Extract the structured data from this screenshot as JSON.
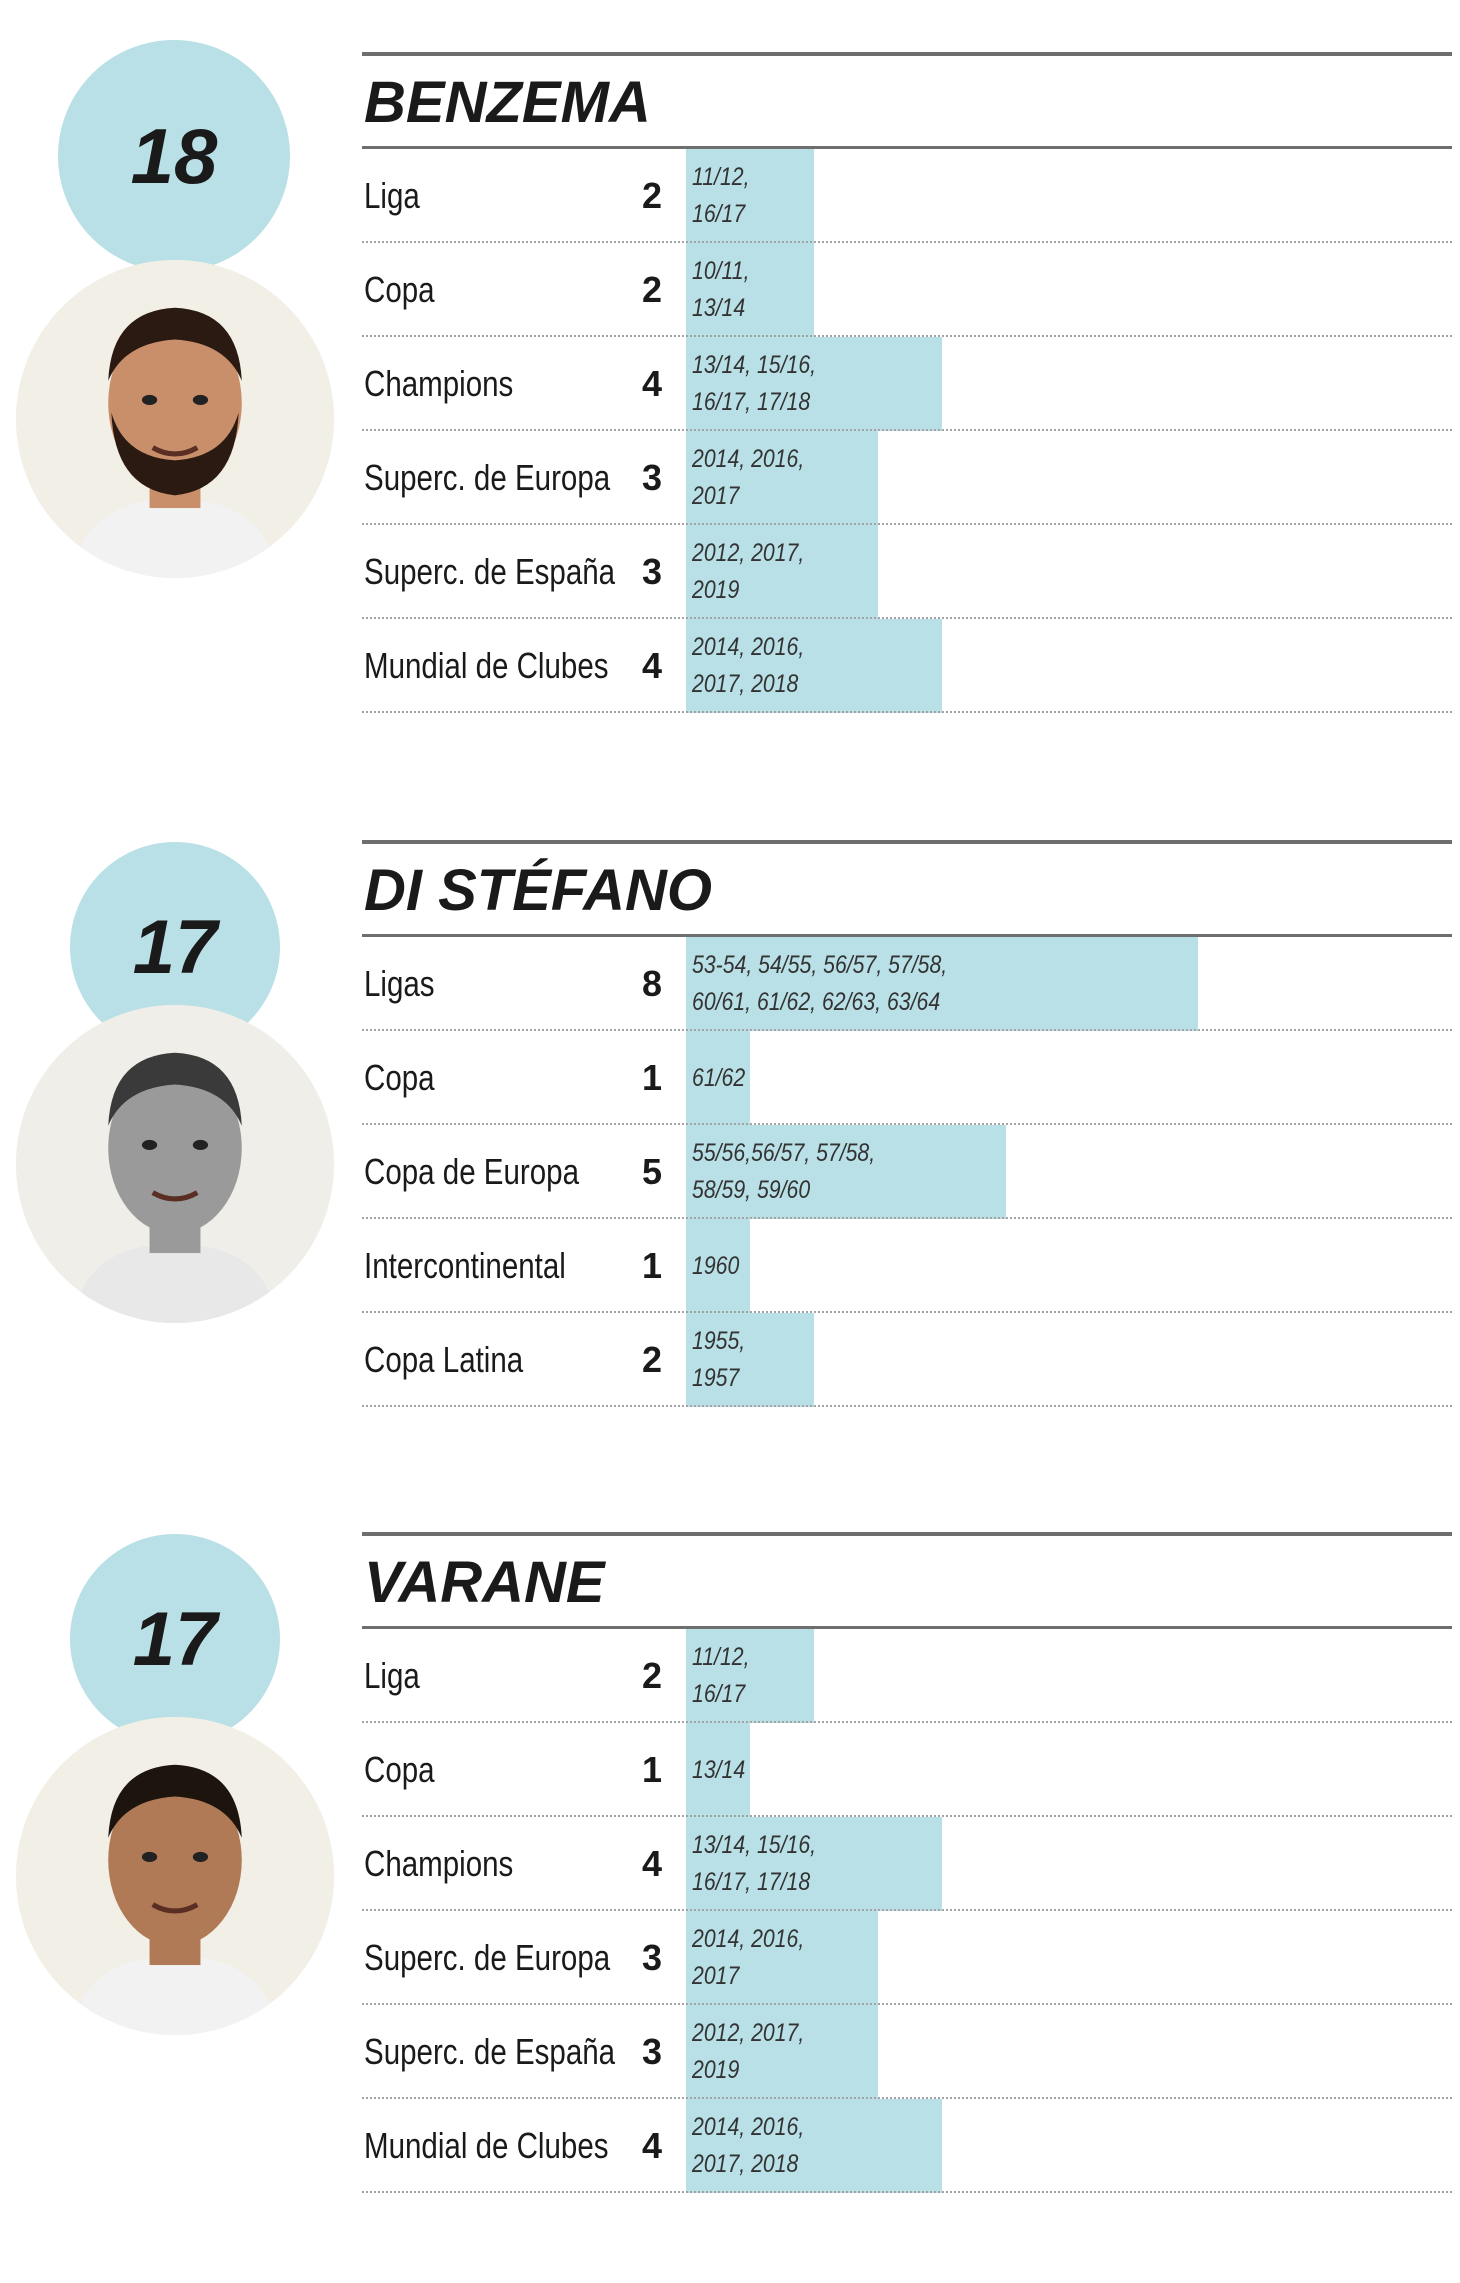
{
  "chart_data": {
    "type": "bar",
    "players": [
      {
        "rank": "18",
        "name": "BENZEMA",
        "photo_icon": "benzema-portrait-icon",
        "titles": [
          {
            "competition": "Liga",
            "count": 2,
            "years": "11/12,\n16/17"
          },
          {
            "competition": "Copa",
            "count": 2,
            "years": "10/11,\n13/14"
          },
          {
            "competition": "Champions",
            "count": 4,
            "years": "13/14, 15/16,\n16/17, 17/18"
          },
          {
            "competition": "Superc. de Europa",
            "count": 3,
            "years": "2014, 2016,\n2017"
          },
          {
            "competition": "Superc. de España",
            "count": 3,
            "years": "2012, 2017,\n2019"
          },
          {
            "competition": "Mundial de Clubes",
            "count": 4,
            "years": "2014, 2016,\n2017, 2018"
          }
        ]
      },
      {
        "rank": "17",
        "name": "DI STÉFANO",
        "photo_icon": "di-stefano-portrait-icon",
        "titles": [
          {
            "competition": "Ligas",
            "count": 8,
            "years": "53-54, 54/55, 56/57, 57/58,\n60/61, 61/62, 62/63, 63/64"
          },
          {
            "competition": "Copa",
            "count": 1,
            "years": "61/62"
          },
          {
            "competition": "Copa de Europa",
            "count": 5,
            "years": "55/56,56/57, 57/58,\n58/59, 59/60"
          },
          {
            "competition": "Intercontinental",
            "count": 1,
            "years": "1960"
          },
          {
            "competition": "Copa Latina",
            "count": 2,
            "years": "1955,\n1957"
          }
        ]
      },
      {
        "rank": "17",
        "name": "VARANE",
        "photo_icon": "varane-portrait-icon",
        "titles": [
          {
            "competition": "Liga",
            "count": 2,
            "years": "11/12,\n16/17"
          },
          {
            "competition": "Copa",
            "count": 1,
            "years": "13/14"
          },
          {
            "competition": "Champions",
            "count": 4,
            "years": "13/14, 15/16,\n16/17, 17/18"
          },
          {
            "competition": "Superc. de Europa",
            "count": 3,
            "years": "2014, 2016,\n2017"
          },
          {
            "competition": "Superc. de España",
            "count": 3,
            "years": "2012, 2017,\n2019"
          },
          {
            "competition": "Mundial de Clubes",
            "count": 4,
            "years": "2014, 2016,\n2017, 2018"
          }
        ]
      }
    ],
    "colors": {
      "bar": "#b8e0e6",
      "badge": "#b8e0e6",
      "rule": "#6e6e6e"
    }
  }
}
